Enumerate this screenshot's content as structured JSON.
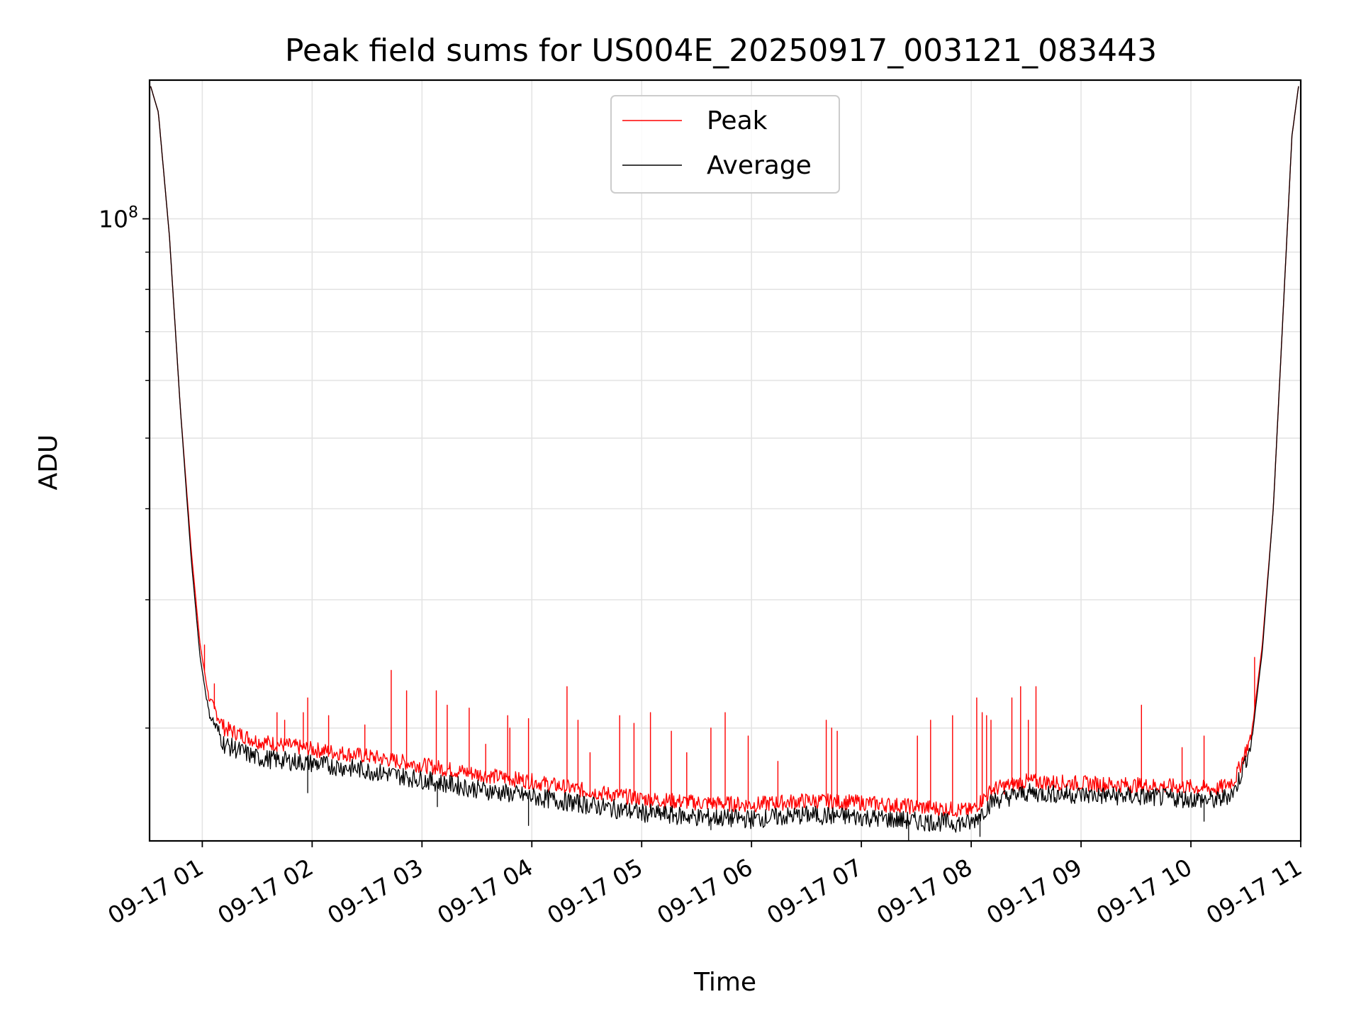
{
  "chart_data": {
    "type": "line",
    "title": "Peak field sums for US004E_20250917_003121_083443",
    "xlabel": "Time",
    "ylabel": "ADU",
    "y_scale": "log",
    "ylim": [
      14000000,
      155000000
    ],
    "y_major_tick": {
      "value": 100000000,
      "base": "10",
      "exp": "8"
    },
    "y_minor_ticks": [
      20000000,
      30000000,
      40000000,
      50000000,
      60000000,
      70000000,
      80000000,
      90000000
    ],
    "x_units": "hours since 09-17 00:00",
    "xlim": [
      0.52,
      11.0
    ],
    "x_ticks": [
      {
        "value": 1,
        "label": "09-17 01"
      },
      {
        "value": 2,
        "label": "09-17 02"
      },
      {
        "value": 3,
        "label": "09-17 03"
      },
      {
        "value": 4,
        "label": "09-17 04"
      },
      {
        "value": 5,
        "label": "09-17 05"
      },
      {
        "value": 6,
        "label": "09-17 06"
      },
      {
        "value": 7,
        "label": "09-17 07"
      },
      {
        "value": 8,
        "label": "09-17 08"
      },
      {
        "value": 9,
        "label": "09-17 09"
      },
      {
        "value": 10,
        "label": "09-17 10"
      },
      {
        "value": 11,
        "label": "09-17 11"
      }
    ],
    "grid": true,
    "legend_position": "top-center",
    "series": [
      {
        "name": "Peak",
        "color": "#ff0000",
        "x": [
          0.53,
          0.6,
          0.7,
          0.8,
          0.9,
          0.98,
          1.06,
          1.2,
          1.5,
          2.0,
          2.5,
          3.0,
          3.5,
          4.0,
          4.5,
          5.0,
          5.5,
          6.0,
          6.5,
          7.0,
          7.5,
          8.0,
          8.2,
          8.5,
          9.0,
          9.5,
          10.0,
          10.25,
          10.4,
          10.55,
          10.65,
          10.75,
          10.85,
          10.92,
          10.98
        ],
        "values": [
          152000000,
          140000000,
          95000000,
          55000000,
          35000000,
          26000000,
          22000000,
          20000000,
          19200000,
          18700000,
          18300000,
          17800000,
          17300000,
          16900000,
          16400000,
          16000000,
          15800000,
          15700000,
          15900000,
          15800000,
          15600000,
          15400000,
          16500000,
          16900000,
          16800000,
          16700000,
          16600000,
          16500000,
          17000000,
          19500000,
          26000000,
          40000000,
          80000000,
          130000000,
          152000000
        ],
        "spikes": [
          {
            "x": 1.02,
            "value": 26000000
          },
          {
            "x": 1.11,
            "value": 23000000
          },
          {
            "x": 1.68,
            "value": 21000000
          },
          {
            "x": 1.75,
            "value": 20500000
          },
          {
            "x": 1.92,
            "value": 21000000
          },
          {
            "x": 1.96,
            "value": 22000000
          },
          {
            "x": 2.15,
            "value": 20800000
          },
          {
            "x": 2.48,
            "value": 20200000
          },
          {
            "x": 2.72,
            "value": 24000000
          },
          {
            "x": 2.86,
            "value": 22500000
          },
          {
            "x": 3.13,
            "value": 22500000
          },
          {
            "x": 3.23,
            "value": 21500000
          },
          {
            "x": 3.43,
            "value": 21300000
          },
          {
            "x": 3.58,
            "value": 19000000
          },
          {
            "x": 3.78,
            "value": 20800000
          },
          {
            "x": 3.8,
            "value": 20000000
          },
          {
            "x": 3.97,
            "value": 20600000
          },
          {
            "x": 4.32,
            "value": 22800000
          },
          {
            "x": 4.42,
            "value": 20500000
          },
          {
            "x": 4.53,
            "value": 18500000
          },
          {
            "x": 4.8,
            "value": 20800000
          },
          {
            "x": 4.93,
            "value": 20300000
          },
          {
            "x": 5.08,
            "value": 21000000
          },
          {
            "x": 5.27,
            "value": 19800000
          },
          {
            "x": 5.41,
            "value": 18500000
          },
          {
            "x": 5.63,
            "value": 20000000
          },
          {
            "x": 5.76,
            "value": 21000000
          },
          {
            "x": 5.97,
            "value": 19500000
          },
          {
            "x": 6.24,
            "value": 18000000
          },
          {
            "x": 6.68,
            "value": 20500000
          },
          {
            "x": 6.73,
            "value": 20000000
          },
          {
            "x": 6.78,
            "value": 19800000
          },
          {
            "x": 7.51,
            "value": 19500000
          },
          {
            "x": 7.63,
            "value": 20500000
          },
          {
            "x": 7.83,
            "value": 20800000
          },
          {
            "x": 8.05,
            "value": 22000000
          },
          {
            "x": 8.1,
            "value": 21000000
          },
          {
            "x": 8.14,
            "value": 20800000
          },
          {
            "x": 8.18,
            "value": 20500000
          },
          {
            "x": 8.37,
            "value": 22000000
          },
          {
            "x": 8.45,
            "value": 22800000
          },
          {
            "x": 8.52,
            "value": 20500000
          },
          {
            "x": 8.59,
            "value": 22800000
          },
          {
            "x": 9.55,
            "value": 21500000
          },
          {
            "x": 9.92,
            "value": 18800000
          },
          {
            "x": 10.12,
            "value": 19500000
          },
          {
            "x": 10.58,
            "value": 25000000
          }
        ]
      },
      {
        "name": "Average",
        "color": "#000000",
        "x": [
          0.53,
          0.6,
          0.7,
          0.8,
          0.9,
          0.98,
          1.06,
          1.2,
          1.5,
          2.0,
          2.5,
          3.0,
          3.5,
          4.0,
          4.5,
          5.0,
          5.5,
          6.0,
          6.5,
          7.0,
          7.5,
          8.0,
          8.2,
          8.5,
          9.0,
          9.5,
          10.0,
          10.25,
          10.4,
          10.55,
          10.65,
          10.75,
          10.85,
          10.92,
          10.98
        ],
        "values": [
          152000000,
          140000000,
          95000000,
          55000000,
          34000000,
          25000000,
          21000000,
          19000000,
          18200000,
          17900000,
          17500000,
          17000000,
          16500000,
          16100000,
          15700000,
          15300000,
          15100000,
          15000000,
          15200000,
          15100000,
          14900000,
          14800000,
          15900000,
          16300000,
          16200000,
          16100000,
          16000000,
          15900000,
          16400000,
          19000000,
          25500000,
          40000000,
          80000000,
          130000000,
          152000000
        ],
        "dips": [
          {
            "x": 1.96,
            "value": 16300000
          },
          {
            "x": 3.14,
            "value": 15600000
          },
          {
            "x": 3.97,
            "value": 14700000
          },
          {
            "x": 5.63,
            "value": 14500000
          },
          {
            "x": 7.43,
            "value": 14000000
          },
          {
            "x": 8.08,
            "value": 14200000
          },
          {
            "x": 10.12,
            "value": 14900000
          }
        ]
      }
    ]
  }
}
